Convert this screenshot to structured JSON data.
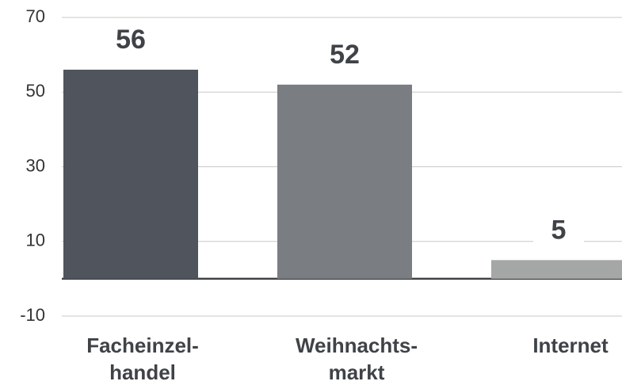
{
  "chart_data": {
    "type": "bar",
    "categories": [
      "Facheinzel-\nhandel",
      "Weihnachts-\nmarkt",
      "Internet"
    ],
    "values": [
      56,
      52,
      5
    ],
    "colors": [
      "#50545c",
      "#7a7d82",
      "#a4a7a6"
    ],
    "ylim": [
      -10,
      70
    ],
    "yticks": [
      -10,
      10,
      30,
      50,
      70
    ],
    "grid": true
  }
}
